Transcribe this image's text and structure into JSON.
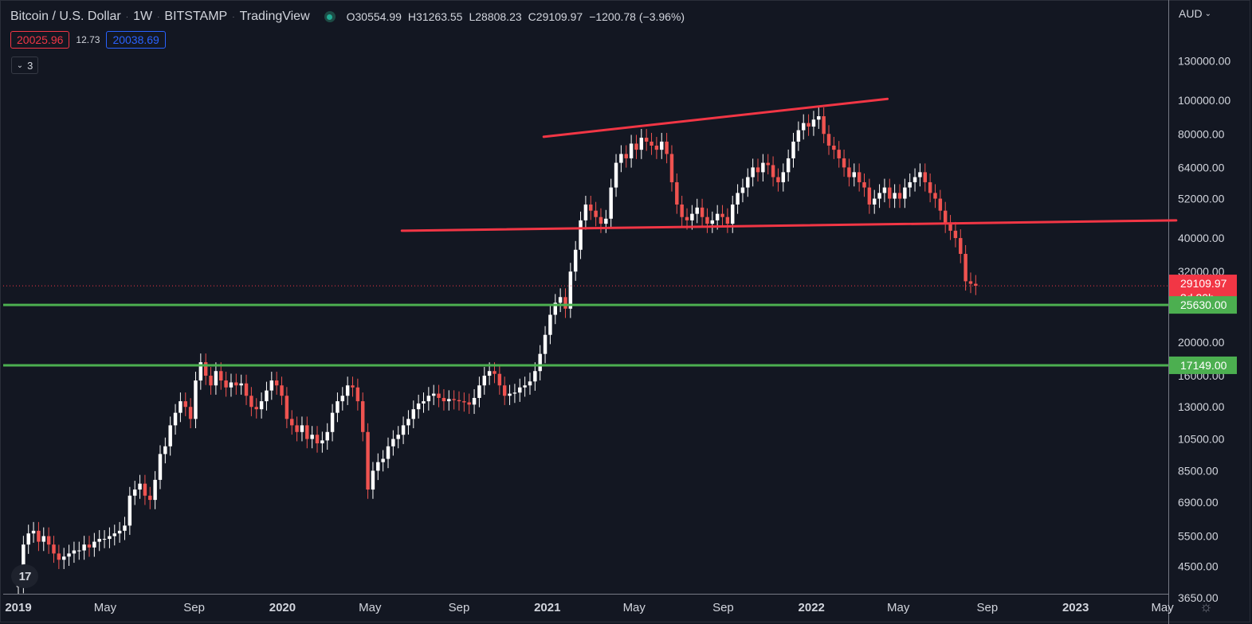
{
  "header": {
    "symbol": "Bitcoin / U.S. Dollar",
    "interval": "1W",
    "exchange": "BITSTAMP",
    "source": "TradingView",
    "open_label": "O",
    "open": "30554.99",
    "high_label": "H",
    "high": "31263.55",
    "low_label": "L",
    "low": "28808.23",
    "close_label": "C",
    "close": "29109.97",
    "change": "−1200.78 (−3.96%)"
  },
  "trade": {
    "sell": "20025.96",
    "spread": "12.73",
    "buy": "20038.69"
  },
  "indicators_count": "3",
  "currency": "AUD",
  "logo_text": "17",
  "colors": {
    "background": "#131722",
    "up": "#ffffff",
    "down": "#ef5350",
    "trendline": "#f23645",
    "support": "#4caf50",
    "grid_text": "#d1d4dc"
  },
  "chart_data": {
    "type": "candlestick",
    "scale": "log",
    "y_range": [
      3650,
      145000
    ],
    "x_range": [
      "2019-01-01",
      "2023-07-01"
    ],
    "y_ticks": [
      "130000.00",
      "100000.00",
      "80000.00",
      "64000.00",
      "52000.00",
      "40000.00",
      "32000.00",
      "20000.00",
      "16000.00",
      "13000.00",
      "10500.00",
      "8500.00",
      "6900.00",
      "5500.00",
      "4500.00",
      "3650.00"
    ],
    "x_ticks": [
      {
        "label": "2019",
        "date": "2019-01-01",
        "bold": true
      },
      {
        "label": "May",
        "date": "2019-05-01"
      },
      {
        "label": "Sep",
        "date": "2019-09-01"
      },
      {
        "label": "2020",
        "date": "2020-01-01",
        "bold": true
      },
      {
        "label": "May",
        "date": "2020-05-01"
      },
      {
        "label": "Sep",
        "date": "2020-09-01"
      },
      {
        "label": "2021",
        "date": "2021-01-01",
        "bold": true
      },
      {
        "label": "May",
        "date": "2021-05-01"
      },
      {
        "label": "Sep",
        "date": "2021-09-01"
      },
      {
        "label": "2022",
        "date": "2022-01-01",
        "bold": true
      },
      {
        "label": "May",
        "date": "2022-05-01"
      },
      {
        "label": "Sep",
        "date": "2022-09-01"
      },
      {
        "label": "2023",
        "date": "2023-01-01",
        "bold": true
      },
      {
        "label": "May",
        "date": "2023-05-01"
      }
    ],
    "price_labels": [
      {
        "price": "29109.97",
        "sub": "3d 20h",
        "value": 29109.97,
        "color": "#f23645"
      },
      {
        "price": "25630.00",
        "value": 25630,
        "color": "#4caf50"
      },
      {
        "price": "17149.00",
        "value": 17149,
        "color": "#4caf50"
      }
    ],
    "horizontal_lines": [
      {
        "value": 25630,
        "color": "#4caf50"
      },
      {
        "value": 17149,
        "color": "#4caf50"
      }
    ],
    "current_price_line": 29109.97,
    "trendlines": [
      {
        "from": {
          "date": "2020-12-27",
          "value": 78500
        },
        "to": {
          "date": "2022-04-16",
          "value": 101000
        },
        "color": "#f23645"
      },
      {
        "from": {
          "date": "2020-06-14",
          "value": 42000
        },
        "to": {
          "date": "2023-05-20",
          "value": 45000
        },
        "color": "#f23645"
      }
    ],
    "series": [
      {
        "start": "2019-01-01",
        "interval_days": 7,
        "close": [
          4000,
          5200,
          5600,
          5700,
          5300,
          5500,
          5200,
          4900,
          4700,
          4800,
          4900,
          5000,
          5000,
          5200,
          5100,
          5300,
          5400,
          5400,
          5500,
          5600,
          5700,
          5900,
          7200,
          7500,
          7800,
          7200,
          7000,
          8000,
          9500,
          10000,
          11500,
          12500,
          13500,
          13000,
          12000,
          15500,
          17500,
          16000,
          15000,
          16500,
          15500,
          14800,
          15300,
          15000,
          15200,
          14000,
          13000,
          12800,
          13500,
          14500,
          15500,
          15000,
          14000,
          12000,
          11500,
          11000,
          11500,
          10500,
          10800,
          10200,
          10400,
          11000,
          12500,
          13500,
          14000,
          15000,
          14800,
          13500,
          11000,
          7500,
          8500,
          9000,
          9200,
          10000,
          10500,
          10800,
          11500,
          12000,
          12800,
          13300,
          13500,
          14000,
          14200,
          13800,
          13500,
          13700,
          13600,
          13500,
          13400,
          13200,
          13800,
          15000,
          16000,
          16500,
          16200,
          15000,
          14000,
          14200,
          14300,
          14800,
          15000,
          15400,
          16500,
          18500,
          21000,
          24000,
          26000,
          27000,
          25000,
          32000,
          37000,
          45000,
          50000,
          48000,
          46000,
          44000,
          45500,
          56000,
          66000,
          70000,
          68000,
          75000,
          72000,
          78000,
          76000,
          74000,
          72000,
          76000,
          70000,
          58000,
          50000,
          46000,
          45000,
          47000,
          49000,
          46000,
          44000,
          45000,
          47000,
          46000,
          44000,
          50000,
          54000,
          56000,
          60000,
          64000,
          62000,
          66000,
          65000,
          60000,
          58000,
          62000,
          68000,
          76000,
          82000,
          86000,
          84000,
          88000,
          90000,
          80000,
          74000,
          72000,
          68000,
          64000,
          60000,
          62000,
          58000,
          56000,
          50000,
          52000,
          54000,
          56000,
          52000,
          54000,
          52000,
          56000,
          58000,
          60000,
          62000,
          58000,
          54000,
          52000,
          48000,
          44000,
          42000,
          40000,
          36000,
          30000,
          29500,
          29110
        ]
      }
    ]
  }
}
